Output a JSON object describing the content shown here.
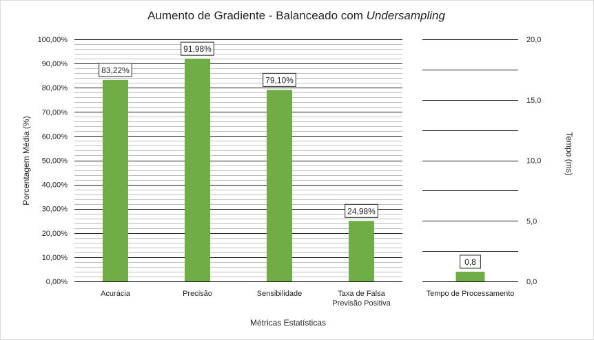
{
  "chart_data": {
    "type": "bar",
    "title_main": "Aumento de Gradiente - Balanceado com ",
    "title_emphasis": "Undersampling",
    "xlabel": "Métricas Estatísticas",
    "colors": {
      "bar": "#70ad47",
      "grid_major": "#1a1a1a",
      "grid_minor": "#bfbfbf",
      "frame": "#d9d9d9"
    },
    "left_panel": {
      "ylabel": "Porcentagem Média (%)",
      "ylim": [
        0,
        100
      ],
      "y_ticks": [
        "0,00%",
        "10,00%",
        "20,00%",
        "30,00%",
        "40,00%",
        "50,00%",
        "60,00%",
        "70,00%",
        "80,00%",
        "90,00%",
        "100,00%"
      ],
      "categories": [
        [
          "Acurácia"
        ],
        [
          "Precisão"
        ],
        [
          "Sensibilidade"
        ],
        [
          "Taxa de Falsa",
          "Previsão Positiva"
        ]
      ],
      "values": [
        83.22,
        91.98,
        79.1,
        24.98
      ],
      "labels": [
        "83,22%",
        "91,98%",
        "79,10%",
        "24,98%"
      ]
    },
    "right_panel": {
      "ylabel": "Tempo (ms)",
      "ylim": [
        0,
        20
      ],
      "y_ticks": [
        "0,0",
        "5,0",
        "10,0",
        "15,0",
        "20,0"
      ],
      "categories": [
        [
          "Tempo de Processamento"
        ]
      ],
      "values": [
        0.8
      ],
      "labels": [
        "0,8"
      ]
    }
  }
}
